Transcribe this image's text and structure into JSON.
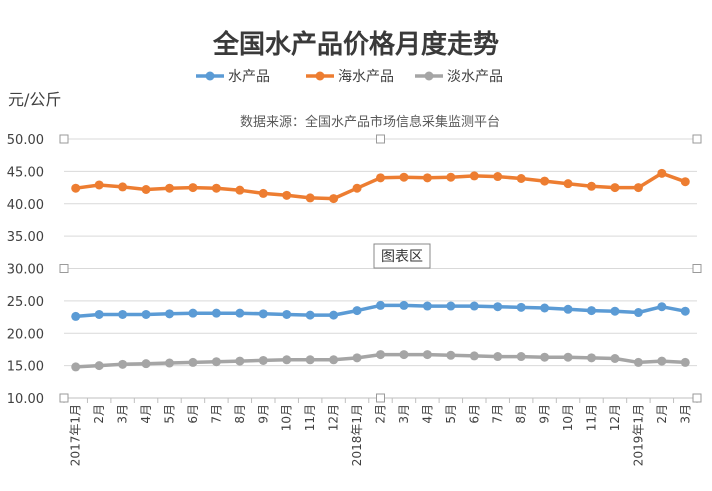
{
  "tooltip": "图表区",
  "chart_data": {
    "type": "line",
    "title": "全国水产品价格月度走势",
    "ylabel": "元/公斤",
    "subtitle": "数据来源：全国水产品市场信息采集监测平台",
    "ylim": [
      10,
      50
    ],
    "yticks": [
      "10.00",
      "15.00",
      "20.00",
      "25.00",
      "30.00",
      "35.00",
      "40.00",
      "45.00",
      "50.00"
    ],
    "grid": true,
    "legend_position": "top",
    "categories": [
      "2017年1月",
      "2月",
      "3月",
      "4月",
      "5月",
      "6月",
      "7月",
      "8月",
      "9月",
      "10月",
      "11月",
      "12月",
      "2018年1月",
      "2月",
      "3月",
      "4月",
      "5月",
      "6月",
      "7月",
      "8月",
      "9月",
      "10月",
      "11月",
      "12月",
      "2019年1月",
      "2月",
      "3月"
    ],
    "series": [
      {
        "name": "水产品",
        "color": "#5b9bd5",
        "values": [
          22.6,
          22.9,
          22.9,
          22.9,
          23.0,
          23.1,
          23.1,
          23.1,
          23.0,
          22.9,
          22.8,
          22.8,
          23.5,
          24.3,
          24.3,
          24.2,
          24.2,
          24.2,
          24.1,
          24.0,
          23.9,
          23.7,
          23.5,
          23.4,
          23.2,
          24.1,
          23.4
        ]
      },
      {
        "name": "海水产品",
        "color": "#ed7d31",
        "values": [
          42.4,
          42.9,
          42.6,
          42.2,
          42.4,
          42.5,
          42.4,
          42.1,
          41.6,
          41.3,
          40.9,
          40.8,
          42.4,
          44.0,
          44.1,
          44.0,
          44.1,
          44.3,
          44.2,
          43.9,
          43.5,
          43.1,
          42.7,
          42.5,
          42.5,
          44.7,
          43.4
        ]
      },
      {
        "name": "淡水产品",
        "color": "#a5a5a5",
        "values": [
          14.8,
          15.0,
          15.2,
          15.3,
          15.4,
          15.5,
          15.6,
          15.7,
          15.8,
          15.9,
          15.9,
          15.9,
          16.2,
          16.7,
          16.7,
          16.7,
          16.6,
          16.5,
          16.4,
          16.4,
          16.3,
          16.3,
          16.2,
          16.1,
          15.5,
          15.7,
          15.5
        ]
      }
    ]
  }
}
